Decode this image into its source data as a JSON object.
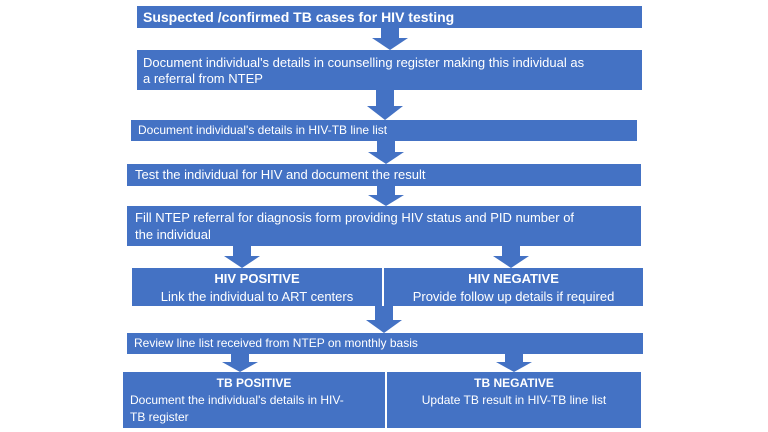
{
  "boxes": {
    "suspected": "Suspected /confirmed TB cases for HIV testing",
    "counselling_line1": "Document individual's details in counselling register making this individual as",
    "counselling_line2": "a referral from NTEP",
    "linelist": "Document individual's details in HIV-TB line list",
    "test": "Test the individual for HIV and document the result",
    "referral_line1": "Fill NTEP referral for diagnosis form providing HIV status and PID number of",
    "referral_line2": "the individual",
    "hiv_pos_title": "HIV POSITIVE",
    "hiv_pos_text": "Link the individual to ART centers",
    "hiv_neg_title": "HIV NEGATIVE",
    "hiv_neg_text": "Provide follow up details if required",
    "review": "Review line list received from NTEP on monthly basis",
    "tb_pos_title": "TB POSITIVE",
    "tb_pos_line1": "Document the individual's details in HIV-",
    "tb_pos_line2": "TB register",
    "tb_neg_title": "TB NEGATIVE",
    "tb_neg_text": "Update TB result in HIV-TB line list"
  },
  "colors": {
    "box_fill": "#4472c4",
    "box_text": "#ffffff",
    "background": "#ffffff"
  }
}
